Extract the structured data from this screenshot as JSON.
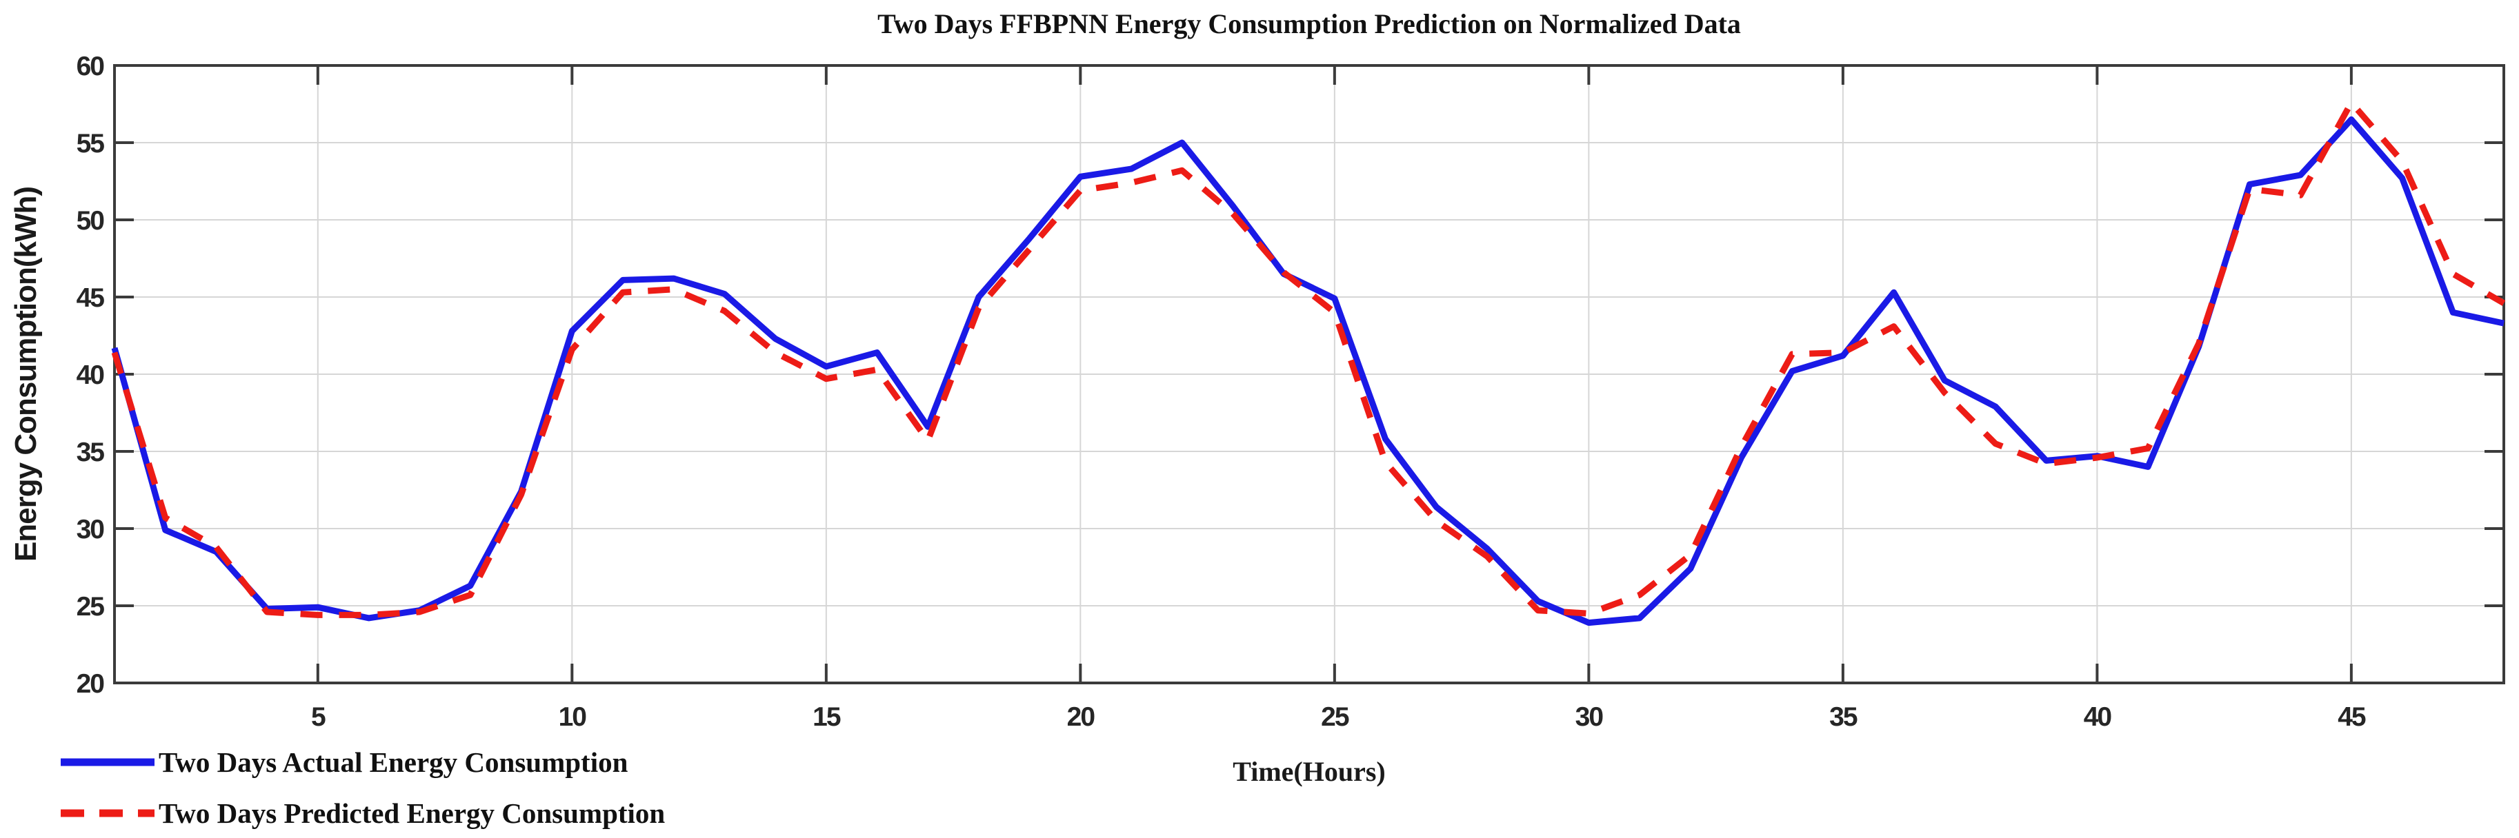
{
  "chart_data": {
    "type": "line",
    "title": "Two Days FFBPNN Energy Consumption Prediction on Normalized Data",
    "xlabel": "Time(Hours)",
    "ylabel": "Energy Consumption(kWh)",
    "xlim": [
      1,
      48
    ],
    "ylim": [
      20,
      60
    ],
    "x_ticks": [
      5,
      10,
      15,
      20,
      25,
      30,
      35,
      40,
      45
    ],
    "y_ticks": [
      20,
      25,
      30,
      35,
      40,
      45,
      50,
      55,
      60
    ],
    "grid": true,
    "legend_position": "below-left",
    "x": [
      1,
      2,
      3,
      4,
      5,
      6,
      7,
      8,
      9,
      10,
      11,
      12,
      13,
      14,
      15,
      16,
      17,
      18,
      19,
      20,
      21,
      22,
      23,
      24,
      25,
      26,
      27,
      28,
      29,
      30,
      31,
      32,
      33,
      34,
      35,
      36,
      37,
      38,
      39,
      40,
      41,
      42,
      43,
      44,
      45,
      46,
      47,
      48
    ],
    "series": [
      {
        "name": "Two Days Actual Energy Consumption",
        "color": "#1a1ae6",
        "style": "solid",
        "values": [
          41.7,
          29.9,
          28.5,
          24.8,
          24.9,
          24.2,
          24.7,
          26.3,
          32.4,
          42.8,
          46.1,
          46.2,
          45.2,
          42.3,
          40.5,
          41.4,
          36.6,
          45.0,
          48.8,
          52.8,
          53.3,
          55.0,
          50.9,
          46.5,
          44.9,
          35.8,
          31.4,
          28.7,
          25.3,
          23.9,
          24.2,
          27.4,
          34.6,
          40.2,
          41.2,
          45.3,
          39.6,
          37.9,
          34.4,
          34.7,
          34.0,
          41.8,
          52.3,
          52.9,
          56.5,
          52.7,
          44.0,
          43.3
        ]
      },
      {
        "name": "Two Days Predicted Energy Consumption",
        "color": "#ed1c16",
        "style": "dashed",
        "values": [
          41.4,
          30.7,
          28.8,
          24.6,
          24.4,
          24.4,
          24.6,
          25.7,
          32.2,
          41.6,
          45.3,
          45.5,
          44.1,
          41.4,
          39.7,
          40.3,
          35.7,
          44.3,
          48.1,
          51.9,
          52.4,
          53.2,
          50.4,
          46.6,
          44.0,
          34.3,
          30.5,
          28.2,
          24.7,
          24.5,
          25.7,
          28.3,
          35.3,
          41.3,
          41.4,
          43.1,
          38.8,
          35.5,
          34.2,
          34.6,
          35.2,
          42.0,
          52.0,
          51.6,
          57.6,
          53.8,
          46.5,
          44.6
        ]
      }
    ]
  },
  "colors": {
    "actual_line": "#1a1ae6",
    "predicted_line": "#ed1c16",
    "grid": "#d6d6d6",
    "frame": "#3b3b3b",
    "background": "#ffffff"
  }
}
